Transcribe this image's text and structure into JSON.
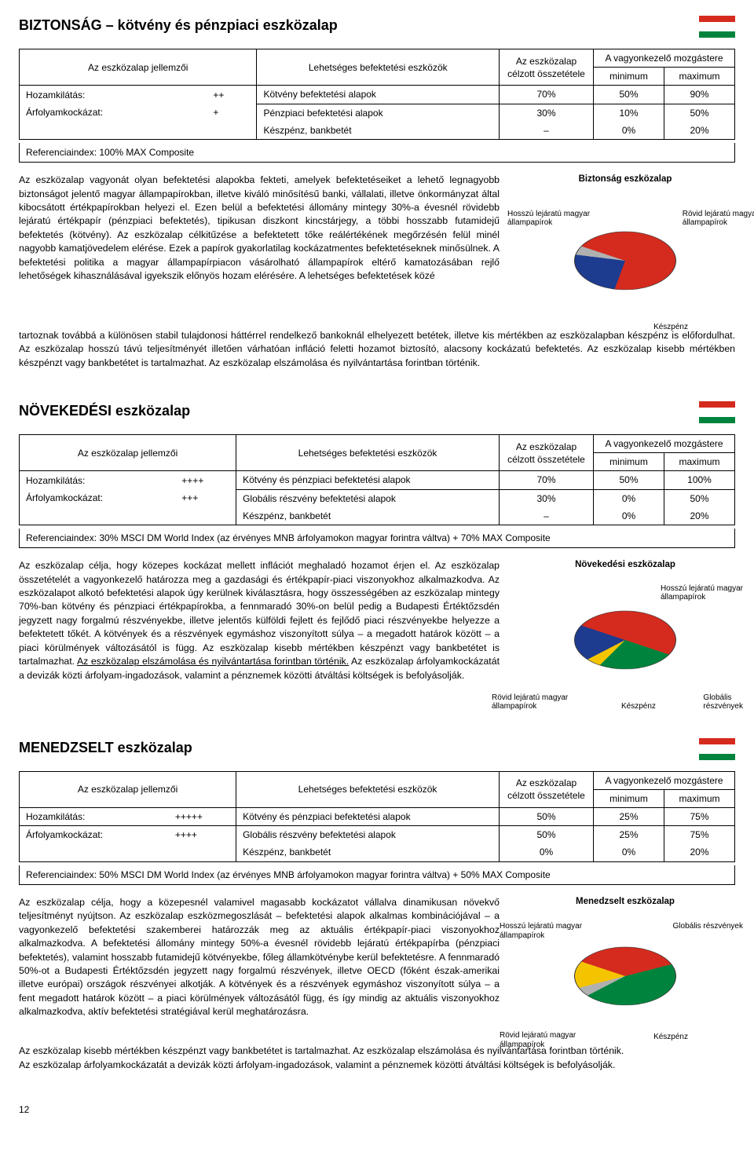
{
  "page_number": "12",
  "colors": {
    "red": "#d52b1e",
    "green": "#00843d",
    "yellow": "#f5c400",
    "blue": "#1d3b8f",
    "grey": "#b0b0b0"
  },
  "sections": [
    {
      "title": "BIZTONSÁG – kötvény és pénzpiaci eszközalap",
      "flag": [
        "#d52b1e",
        "#ffffff",
        "#00843d"
      ],
      "table": {
        "h1": "Az eszközalap jellemzői",
        "h2": "Lehetséges befektetési eszközök",
        "h3": "Az eszközalap\ncélzott összetétele",
        "h4": "A vagyonkezelő mozgástere",
        "h4a": "minimum",
        "h4b": "maximum",
        "char1_label": "Hozamkilátás:",
        "char1_val": "++",
        "char2_label": "Árfolyamkockázat:",
        "char2_val": "+",
        "row1": [
          "Kötvény befektetési alapok",
          "70%",
          "50%",
          "90%"
        ],
        "row2a": [
          "Pénzpiaci befektetési alapok",
          "30%",
          "10%",
          "50%"
        ],
        "row2b": [
          "Készpénz, bankbetét",
          "–",
          "0%",
          "20%"
        ],
        "ref": "Referenciaindex: 100% MAX Composite"
      },
      "chart": {
        "title": "Biztonság eszközalap",
        "labels": {
          "tl": "Hosszú lejáratú magyar\nállampapírok",
          "tr": "Rövid lejáratú magyar\nállampapírok",
          "b": "Készpénz"
        },
        "slices": [
          {
            "color": "#d52b1e",
            "pct": 70
          },
          {
            "color": "#1d3b8f",
            "pct": 25
          },
          {
            "color": "#b0b0b0",
            "pct": 5
          }
        ]
      },
      "body": "Az eszközalap vagyonát olyan befektetési alapokba fekteti, amelyek befektetéseiket a lehető legnagyobb biztonságot jelentő magyar állampapírokban, illetve kiváló minősítésű banki, vállalati, illetve önkormányzat által kibocsátott értékpapírokban helyezi el. Ezen belül a befektetési állomány mintegy 30%-a évesnél rövidebb lejáratú értékpapír (pénzpiaci befektetés), tipikusan diszkont kincstárjegy, a többi hosszabb futamidejű befektetés (kötvény). Az eszközalap célkitűzése a befektetett tőke reálértékének megőrzésén felül minél nagyobb kamatjövedelem elérése. Ezek a papírok gyakorlatilag kockázatmentes befektetéseknek minősülnek. A befektetési politika a magyar állampapírpiacon vásárolható állampapírok eltérő kamatozásában rejlő lehetőségek kihasználásával igyekszik előnyös hozam elérésére. A lehetséges befektetések közé",
      "below": "tartoznak továbbá a különösen stabil tulajdonosi háttérrel rendelkező bankoknál elhelyezett betétek, illetve kis mértékben az eszközalapban készpénz is előfordulhat. Az eszközalap hosszú távú teljesítményét illetően várhatóan infláció feletti hozamot biztosító, alacsony kockázatú befektetés. Az eszközalap kisebb mértékben készpénzt vagy bankbetétet is tartalmazhat. ",
      "below_under": "Az eszközalap elszámolása és nyilvántartása forintban történik."
    },
    {
      "title": "NÖVEKEDÉSI eszközalap",
      "flag": [
        "#d52b1e",
        "#ffffff",
        "#00843d"
      ],
      "table": {
        "h1": "Az eszközalap jellemzői",
        "h2": "Lehetséges befektetési eszközök",
        "h3": "Az eszközalap\ncélzott összetétele",
        "h4": "A vagyonkezelő mozgástere",
        "h4a": "minimum",
        "h4b": "maximum",
        "char1_label": "Hozamkilátás:",
        "char1_val": "++++",
        "char2_label": "Árfolyamkockázat:",
        "char2_val": "+++",
        "row1": [
          "Kötvény és pénzpiaci befektetési alapok",
          "70%",
          "50%",
          "100%"
        ],
        "row2a": [
          "Globális részvény befektetési alapok",
          "30%",
          "0%",
          "50%"
        ],
        "row2b": [
          "Készpénz, bankbetét",
          "–",
          "0%",
          "20%"
        ],
        "ref": "Referenciaindex: 30% MSCI DM World Index (az érvényes MNB árfolyamokon magyar forintra váltva) + 70% MAX Composite"
      },
      "chart": {
        "title": "Növekedési eszközalap",
        "labels": {
          "tr": "Hosszú lejáratú magyar\nállampapírok",
          "bl": "Rövid lejáratú magyar\nállampapírok",
          "bm": "Készpénz",
          "br": "Globális\nrészvények"
        },
        "slices": [
          {
            "color": "#d52b1e",
            "pct": 50
          },
          {
            "color": "#00843d",
            "pct": 25
          },
          {
            "color": "#f5c400",
            "pct": 5
          },
          {
            "color": "#1d3b8f",
            "pct": 20
          }
        ]
      },
      "body": "Az eszközalap célja, hogy közepes kockázat mellett inflációt meghaladó hozamot érjen el. Az eszközalap összetételét a vagyonkezelő határozza meg a gazdasági és értékpapír-piaci viszonyokhoz alkalmazkodva. Az eszközalapot alkotó befektetési alapok úgy kerülnek kiválasztásra, hogy összességében az eszközalap mintegy 70%-ban kötvény és pénzpiaci értékpapírokba, a fennmaradó 30%-on belül pedig a Budapesti Értéktőzsdén jegyzett nagy forgalmú részvényekbe, illetve jelentős külföldi fejlett és fejlődő piaci részvényekbe helyezze a befektetett tőkét. A kötvények és a részvények egymáshoz viszonyított súlya – a megadott határok között – a piaci körülmények változásától is függ. Az eszközalap kisebb mértékben készpénzt vagy bankbetétet is tartalmazhat. ",
      "body_under": "Az eszközalap elszámolása és nyilvántartása forintban történik.",
      "body2": " Az eszközalap árfolyamkockázatát a devizák közti árfolyam-ingadozások, valamint a pénznemek közötti átváltási költségek is befolyásolják."
    },
    {
      "title": "MENEDZSELT eszközalap",
      "flag": [
        "#d52b1e",
        "#ffffff",
        "#00843d"
      ],
      "table": {
        "h1": "Az eszközalap jellemzői",
        "h2": "Lehetséges befektetési eszközök",
        "h3": "Az eszközalap\ncélzott összetétele",
        "h4": "A vagyonkezelő mozgástere",
        "h4a": "minimum",
        "h4b": "maximum",
        "char1_label": "Hozamkilátás:",
        "char1_val": "+++++",
        "char2_label": "Árfolyamkockázat:",
        "char2_val": "++++",
        "row1": [
          "Kötvény és pénzpiaci befektetési alapok",
          "50%",
          "25%",
          "75%"
        ],
        "row2a": [
          "Globális részvény befektetési alapok",
          "50%",
          "25%",
          "75%"
        ],
        "row2b": [
          "Készpénz, bankbetét",
          "0%",
          "0%",
          "20%"
        ],
        "ref": "Referenciaindex: 50% MSCI DM World Index (az érvényes MNB árfolyamokon magyar forintra váltva) + 50% MAX Composite"
      },
      "chart": {
        "title": "Menedzselt eszközalap",
        "labels": {
          "tl": "Hosszú lejáratú magyar\nállampapírok",
          "tr": "Globális részvények",
          "bl": "Rövid lejáratú magyar\nállampapírok",
          "bm": "Készpénz"
        },
        "slices": [
          {
            "color": "#d52b1e",
            "pct": 35
          },
          {
            "color": "#00843d",
            "pct": 45
          },
          {
            "color": "#b0b0b0",
            "pct": 5
          },
          {
            "color": "#f5c400",
            "pct": 15
          }
        ]
      },
      "body": "Az eszközalap célja, hogy a közepesnél valamivel magasabb kockázatot vállalva dinamikusan növekvő teljesítményt nyújtson. Az eszközalap eszközmegoszlását – befektetési alapok alkalmas kombinációjával – a vagyonkezelő befektetési szakemberei határozzák meg az aktuális értékpapír-piaci viszonyokhoz alkalmazkodva. A befektetési állomány mintegy 50%-a évesnél rövidebb lejáratú értékpapírba (pénzpiaci befektetés), valamint hosszabb futamidejű kötvényekbe, főleg államkötvénybe kerül befektetésre. A fennmaradó 50%-ot a Budapesti Értéktőzsdén jegyzett nagy forgalmú részvények, illetve OECD (főként észak-amerikai illetve európai) országok részvényei alkotják. A kötvények és a részvények egymáshoz viszonyított súlya – a fent megadott határok között – a piaci körülmények változásától függ, és így mindig az aktuális viszonyokhoz alkalmazkodva, aktív befektetési stratégiával kerül meghatározásra.",
      "below": "Az eszközalap kisebb mértékben készpénzt vagy bankbetétet is tartalmazhat. ",
      "below_under": "Az eszközalap elszámolása és nyilvántartása forintban történik.",
      "below2": "Az eszközalap árfolyamkockázatát a devizák közti árfolyam-ingadozások, valamint a pénznemek közötti átváltási költségek is befolyásolják."
    }
  ]
}
